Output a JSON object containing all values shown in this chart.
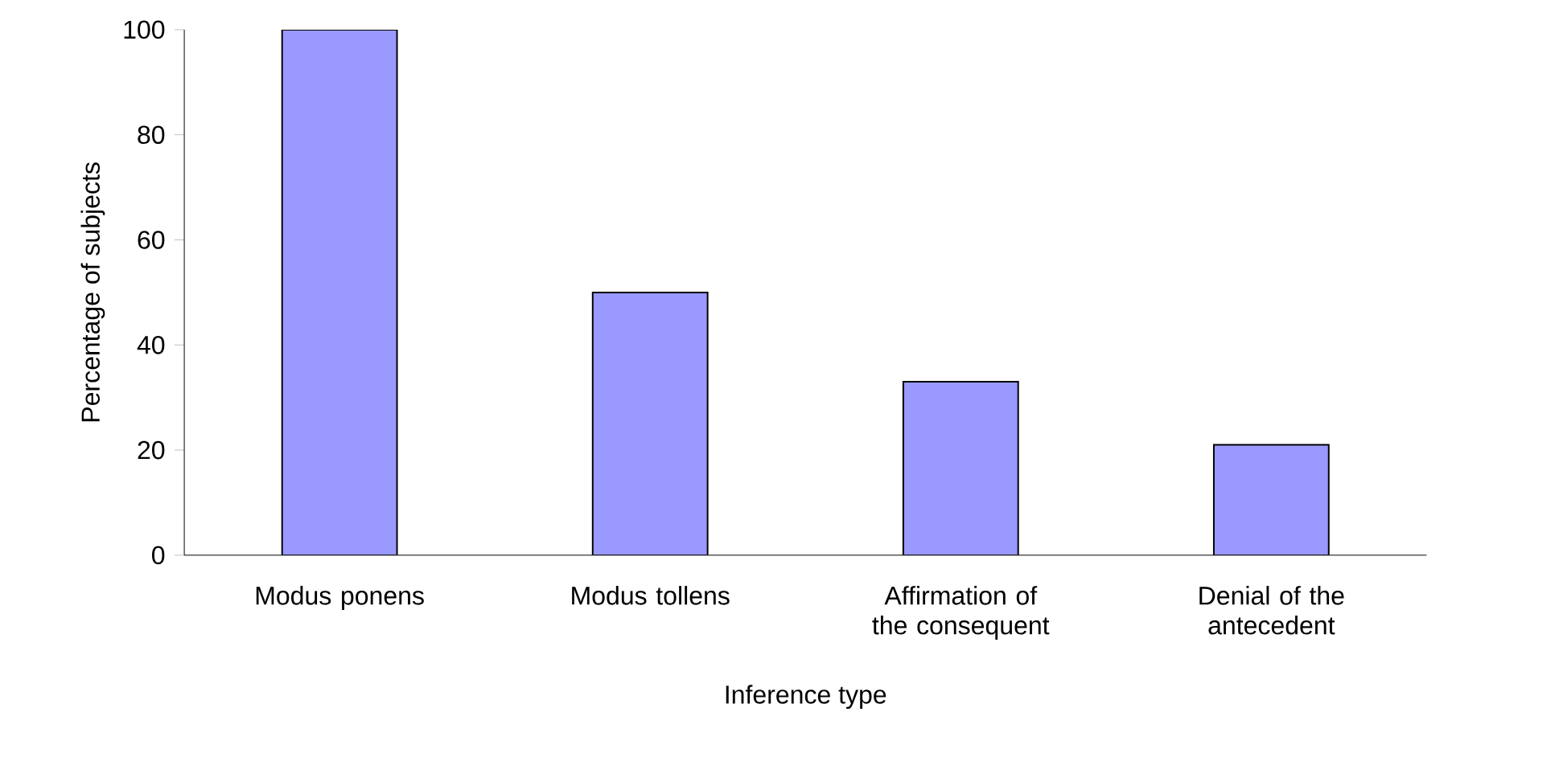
{
  "chart_data": {
    "type": "bar",
    "xlabel": "Inference type",
    "ylabel": "Percentage of subjects",
    "categories": [
      "Modus ponens",
      "Modus tollens",
      "Affirmation of the consequent",
      "Denial of the antecedent"
    ],
    "values": [
      100,
      50,
      33,
      21
    ],
    "color": "#9999ff",
    "ylim": [
      0,
      100
    ],
    "yticks": [
      0,
      20,
      40,
      60,
      80,
      100
    ]
  }
}
